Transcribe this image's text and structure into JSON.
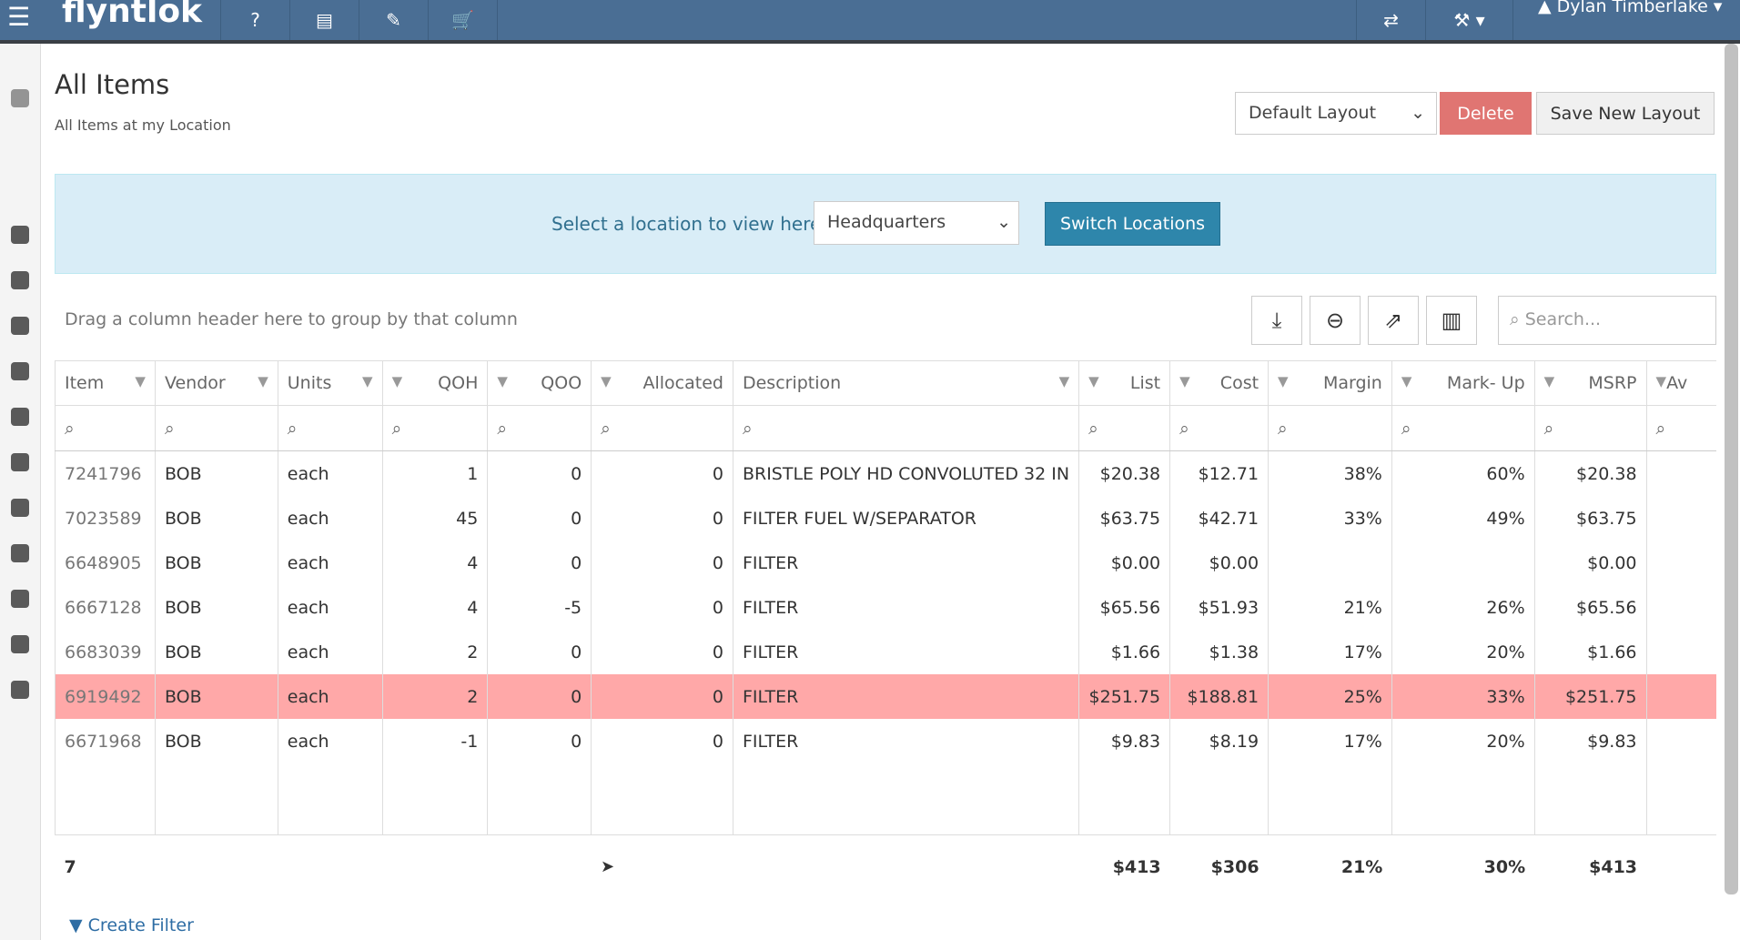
{
  "nav": {
    "brand": "flyntlok",
    "user": "Dylan Timberlake"
  },
  "page": {
    "title": "All Items",
    "subtitle": "All Items at my Location"
  },
  "layout": {
    "selected": "Default Layout",
    "delete": "Delete",
    "save": "Save New Layout"
  },
  "location": {
    "prompt": "Select a location to view here.",
    "selected": "Headquarters",
    "switch": "Switch Locations"
  },
  "grid": {
    "group_prompt": "Drag a column header here to group by that column",
    "search_placeholder": "Search...",
    "columns": [
      "Item",
      "Vendor",
      "Units",
      "QOH",
      "QOO",
      "Allocated",
      "Description",
      "List",
      "Cost",
      "Margin",
      "Mark- Up",
      "MSRP",
      "Av"
    ],
    "rows": [
      [
        "7241796",
        "BOB",
        "each",
        "1",
        "0",
        "0",
        "BRISTLE POLY HD CONVOLUTED 32 IN",
        "$20.38",
        "$12.71",
        "38%",
        "60%",
        "$20.38",
        null
      ],
      [
        "7023589",
        "BOB",
        "each",
        "45",
        "0",
        "0",
        "FILTER FUEL W/SEPARATOR",
        "$63.75",
        "$42.71",
        "33%",
        "49%",
        "$63.75",
        null
      ],
      [
        "6648905",
        "BOB",
        "each",
        "4",
        "0",
        "0",
        "FILTER",
        "$0.00",
        "$0.00",
        null,
        null,
        "$0.00",
        null
      ],
      [
        "6667128",
        "BOB",
        "each",
        "4",
        "-5",
        "0",
        "FILTER",
        "$65.56",
        "$51.93",
        "21%",
        "26%",
        "$65.56",
        null
      ],
      [
        "6683039",
        "BOB",
        "each",
        "2",
        "0",
        "0",
        "FILTER",
        "$1.66",
        "$1.38",
        "17%",
        "20%",
        "$1.66",
        null
      ],
      [
        "6919492",
        "BOB",
        "each",
        "2",
        "0",
        "0",
        "FILTER",
        "$251.75",
        "$188.81",
        "25%",
        "33%",
        "$251.75",
        null
      ],
      [
        "6671968",
        "BOB",
        "each",
        "-1",
        "0",
        "0",
        "FILTER",
        "$9.83",
        "$8.19",
        "17%",
        "20%",
        "$9.83",
        null
      ]
    ],
    "highlighted_row": 5,
    "totals": [
      "7",
      null,
      null,
      null,
      null,
      null,
      null,
      "$413",
      "$306",
      "21%",
      "30%",
      "$413",
      null
    ],
    "create_filter": "Create Filter"
  }
}
